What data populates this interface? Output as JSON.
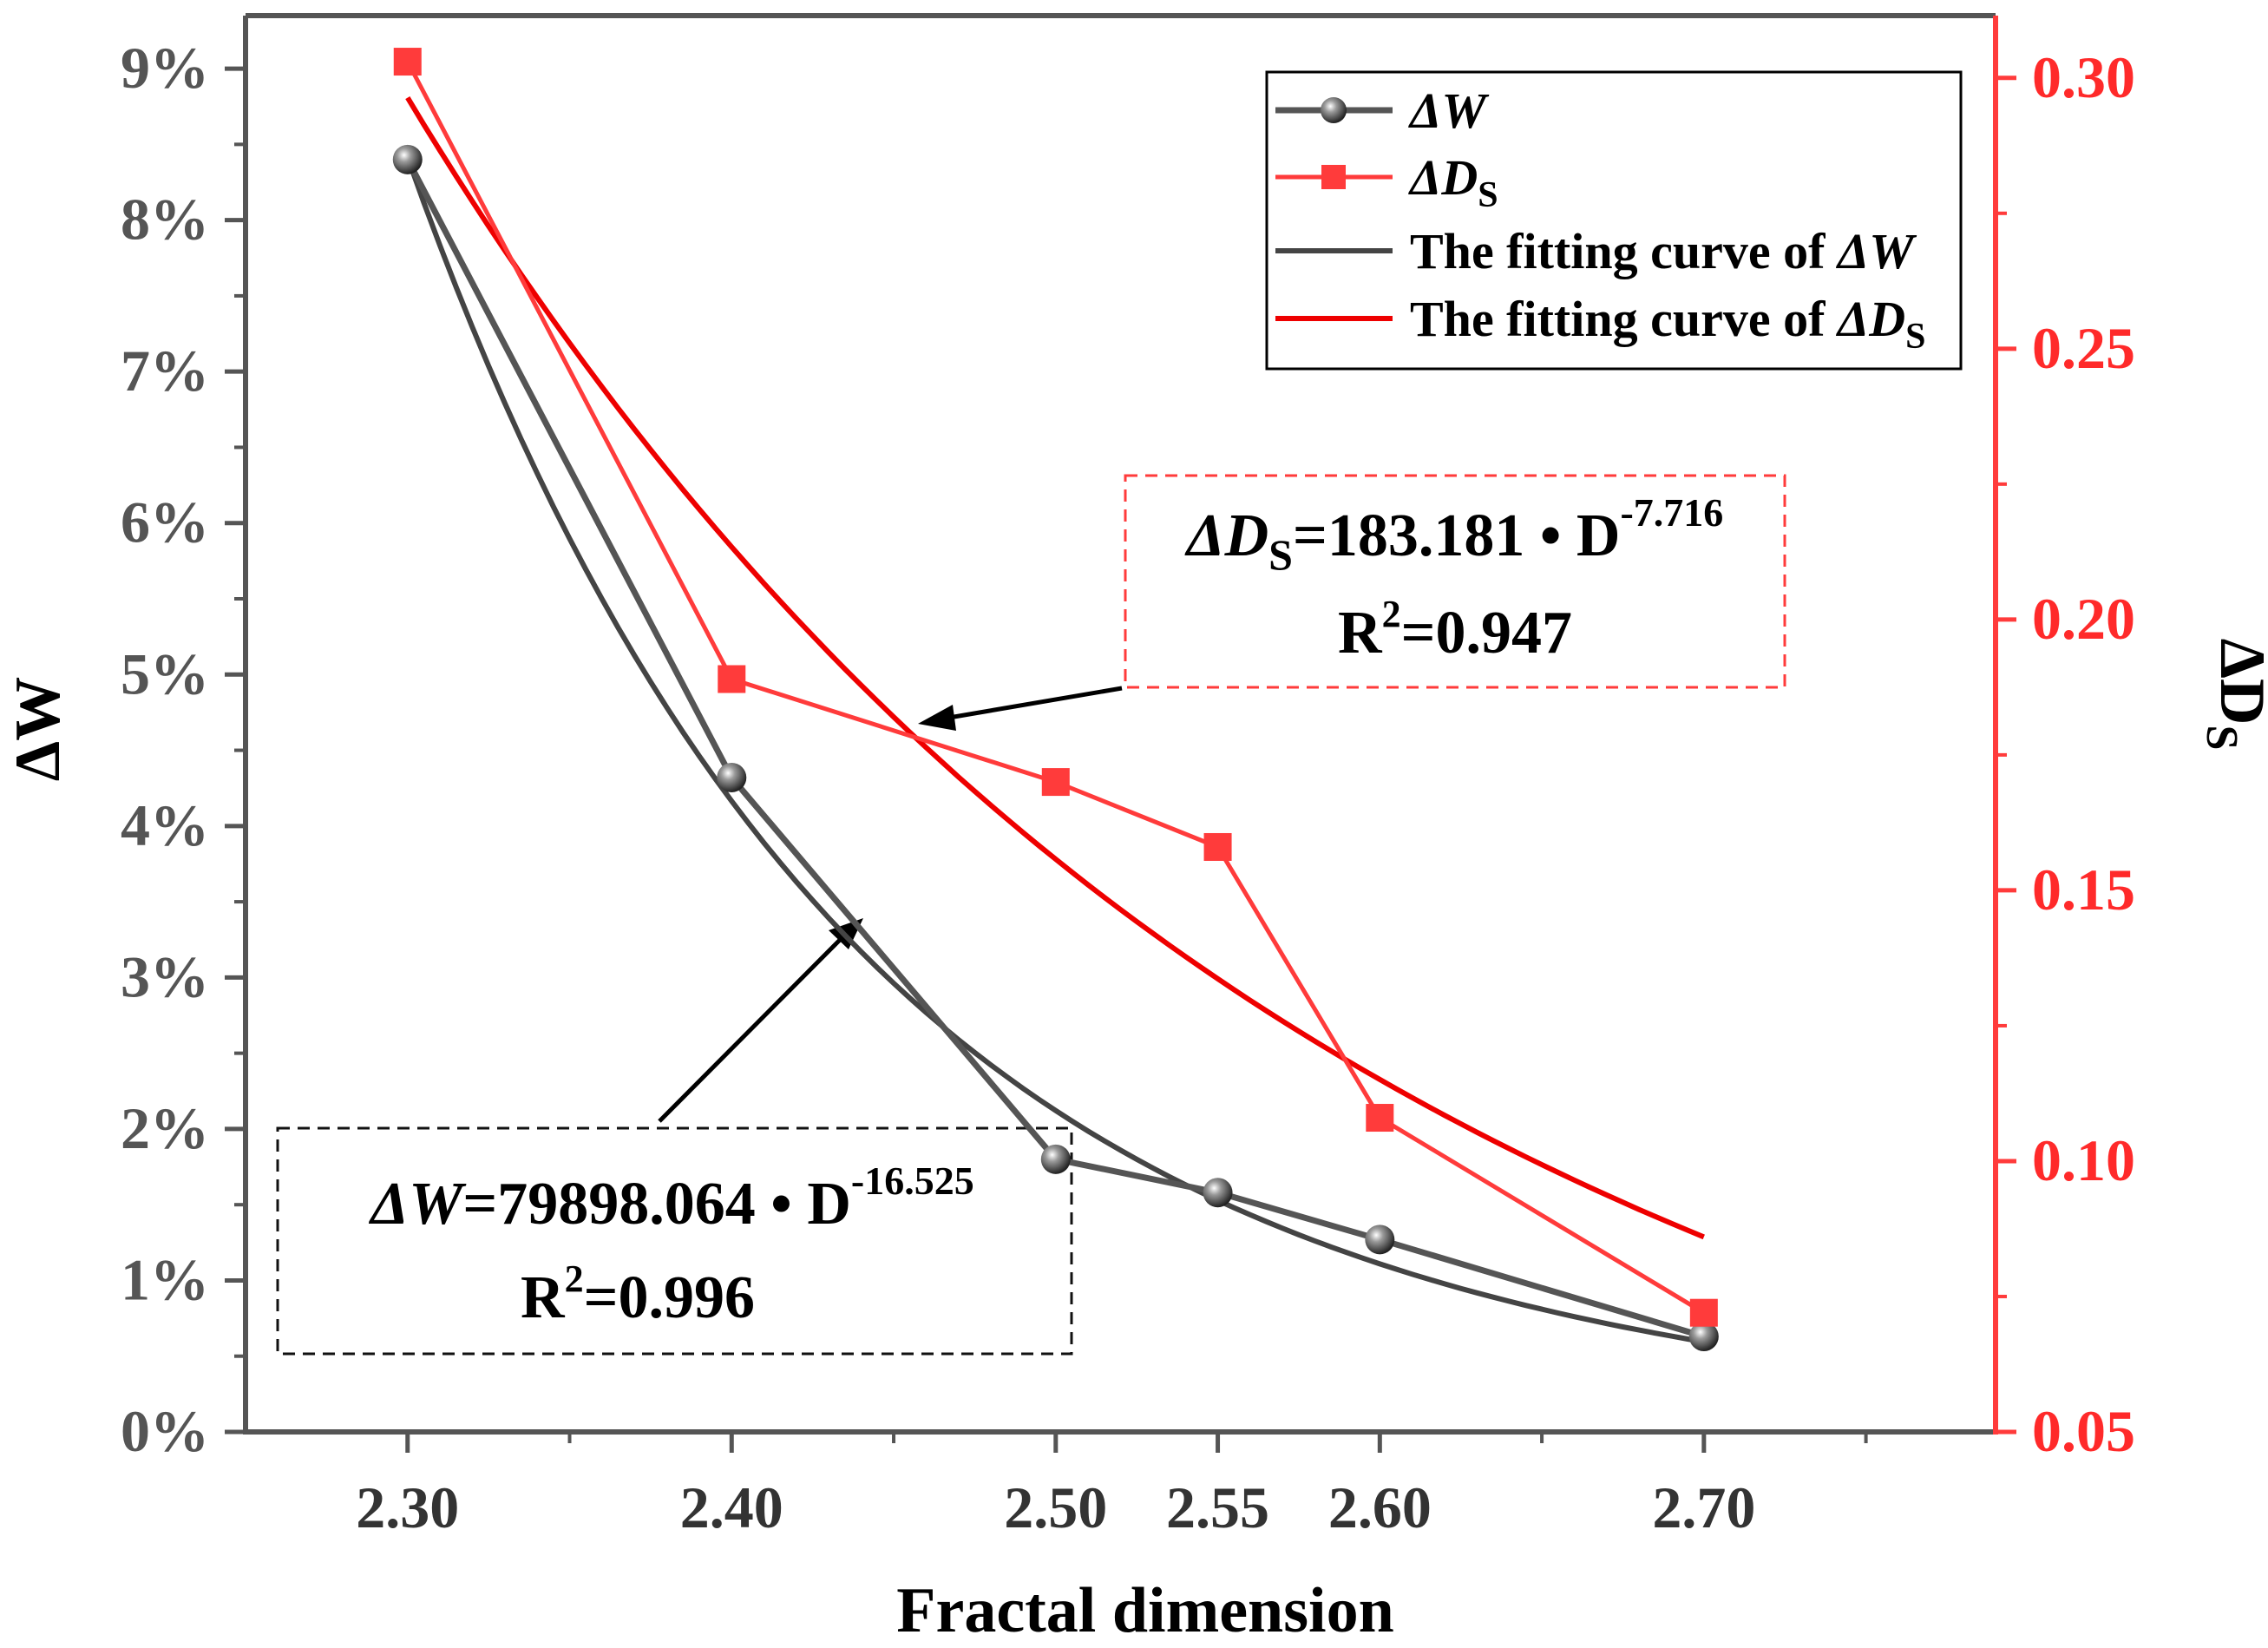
{
  "chart_data": {
    "type": "line",
    "xlabel": "Fractal dimension",
    "x": [
      2.3,
      2.4,
      2.5,
      2.55,
      2.6,
      2.7
    ],
    "x_tick_labels": [
      "2.30",
      "2.40",
      "2.50",
      "2.55",
      "2.60",
      "2.70"
    ],
    "xlim": [
      2.25,
      2.79
    ],
    "left_axis": {
      "label_symbol": "Δ",
      "label_rest": "W",
      "ylim": [
        0,
        9.35
      ],
      "ticks": [
        0,
        1,
        2,
        3,
        4,
        5,
        6,
        7,
        8,
        9
      ],
      "tick_labels": [
        "0%",
        "1%",
        "2%",
        "3%",
        "4%",
        "5%",
        "6%",
        "7%",
        "8%",
        "9%"
      ]
    },
    "right_axis": {
      "label_main": "ΔD",
      "label_sub": "S",
      "ylim": [
        0.05,
        0.3115
      ],
      "ticks": [
        0.05,
        0.1,
        0.15,
        0.2,
        0.25,
        0.3
      ],
      "tick_labels": [
        "0.05",
        "0.10",
        "0.15",
        "0.20",
        "0.25",
        "0.30"
      ]
    },
    "series": [
      {
        "name": "ΔW",
        "axis": "left",
        "color": "#555555",
        "marker": "sphere",
        "values": [
          8.4,
          4.32,
          1.8,
          1.58,
          1.27,
          0.63
        ]
      },
      {
        "name": "ΔDS",
        "axis": "right",
        "color": "#ff3b3b",
        "marker": "square",
        "values": [
          0.303,
          0.189,
          0.17,
          0.158,
          0.108,
          0.072
        ]
      }
    ],
    "fits": [
      {
        "name": "The fitting curve of ΔW",
        "axis": "left",
        "color": "#444444",
        "coef": 79898.064,
        "exponent": -16.525,
        "range": [
          2.3,
          2.7
        ]
      },
      {
        "name": "The fitting curve of ΔDS",
        "axis": "right",
        "color": "#ee0000",
        "coef": 183.181,
        "exponent": -7.716,
        "range": [
          2.3,
          2.7
        ]
      }
    ],
    "legend": {
      "position": "top-right",
      "items": [
        {
          "label_italic": "ΔW",
          "label_sub": ""
        },
        {
          "label_italic": "ΔD",
          "label_sub": "S"
        },
        {
          "label_prefix": "The fitting curve of ",
          "label_italic": "ΔW",
          "label_sub": ""
        },
        {
          "label_prefix": "The fitting curve of ",
          "label_italic": "ΔD",
          "label_sub": "S"
        }
      ]
    },
    "annotations": {
      "ds_equation": {
        "lhs_italic": "ΔD",
        "lhs_sub": "S",
        "rhs": "=183.181 • D",
        "exponent": "-7.716",
        "r2_prefix": "R",
        "r2_sup": "2",
        "r2_value": "=0.947"
      },
      "w_equation": {
        "lhs_italic": "ΔW",
        "rhs": "=79898.064 • D",
        "exponent": "-16.525",
        "r2_prefix": "R",
        "r2_sup": "2",
        "r2_value": "=0.996"
      }
    }
  }
}
